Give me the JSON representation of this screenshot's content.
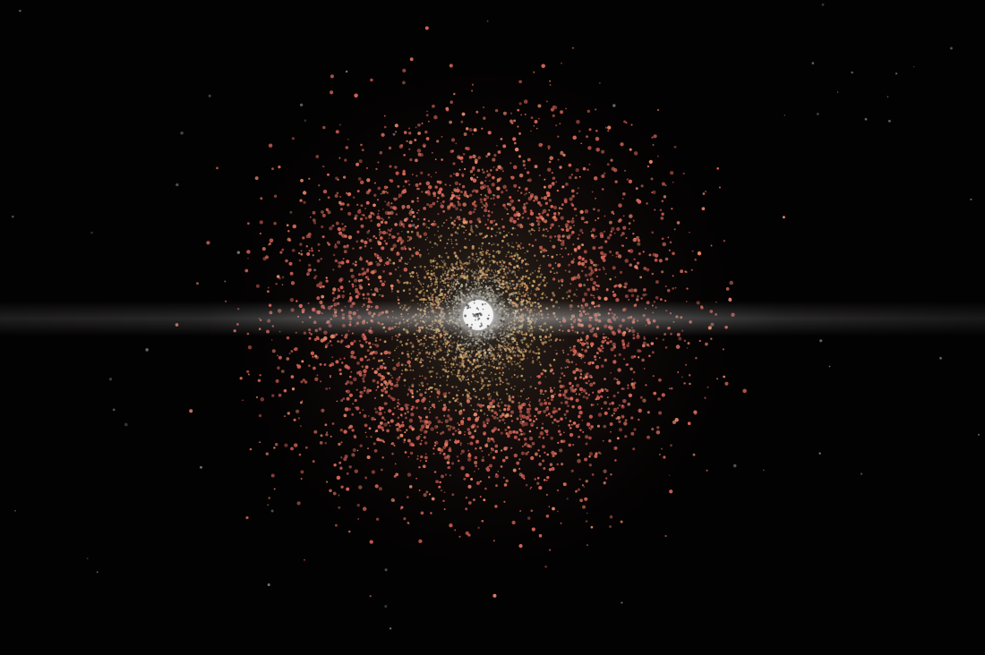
{
  "scene": {
    "description_name": "space-debris-cloud-around-earth",
    "colors": {
      "background": "#030202",
      "outer_debris": "#e0675a",
      "mid_debris": "#d9b070",
      "inner_debris": "#c9c6b0",
      "core": "#f2f2f2",
      "band": "#8a8580",
      "stars": "#9a9a9a"
    },
    "debris_counts": {
      "outer_red": 2600,
      "middle_gold": 1700,
      "inner_gray": 1200,
      "background_stars": 70
    }
  }
}
